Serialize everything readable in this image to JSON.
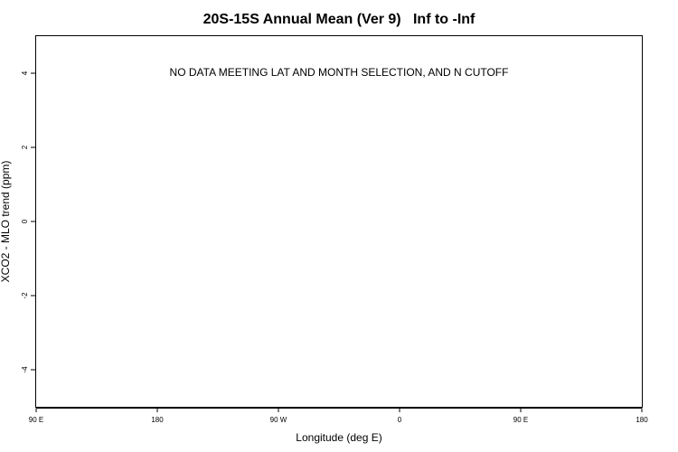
{
  "chart_data": {
    "type": "scatter",
    "title": "20S-15S Annual Mean (Ver 9)   Inf to -Inf",
    "xlabel": "Longitude (deg E)",
    "ylabel": "XCO2 - MLO trend (ppm)",
    "annotation": "NO DATA MEETING LAT AND MONTH SELECTION, AND N CUTOFF",
    "xlim": [
      90,
      450
    ],
    "ylim": [
      -5,
      5
    ],
    "x_ticks": [
      {
        "value": 90,
        "label": "90 E"
      },
      {
        "value": 180,
        "label": "180"
      },
      {
        "value": 270,
        "label": "90 W"
      },
      {
        "value": 360,
        "label": "0"
      },
      {
        "value": 450,
        "label": "90 E"
      },
      {
        "value": 540,
        "label": "180"
      }
    ],
    "y_ticks": [
      {
        "value": 4,
        "label": "4"
      },
      {
        "value": 2,
        "label": "2"
      },
      {
        "value": 0,
        "label": "0"
      },
      {
        "value": -2,
        "label": "-2"
      },
      {
        "value": -4,
        "label": "-4"
      }
    ],
    "series": [],
    "grid": false,
    "legend": "none"
  }
}
